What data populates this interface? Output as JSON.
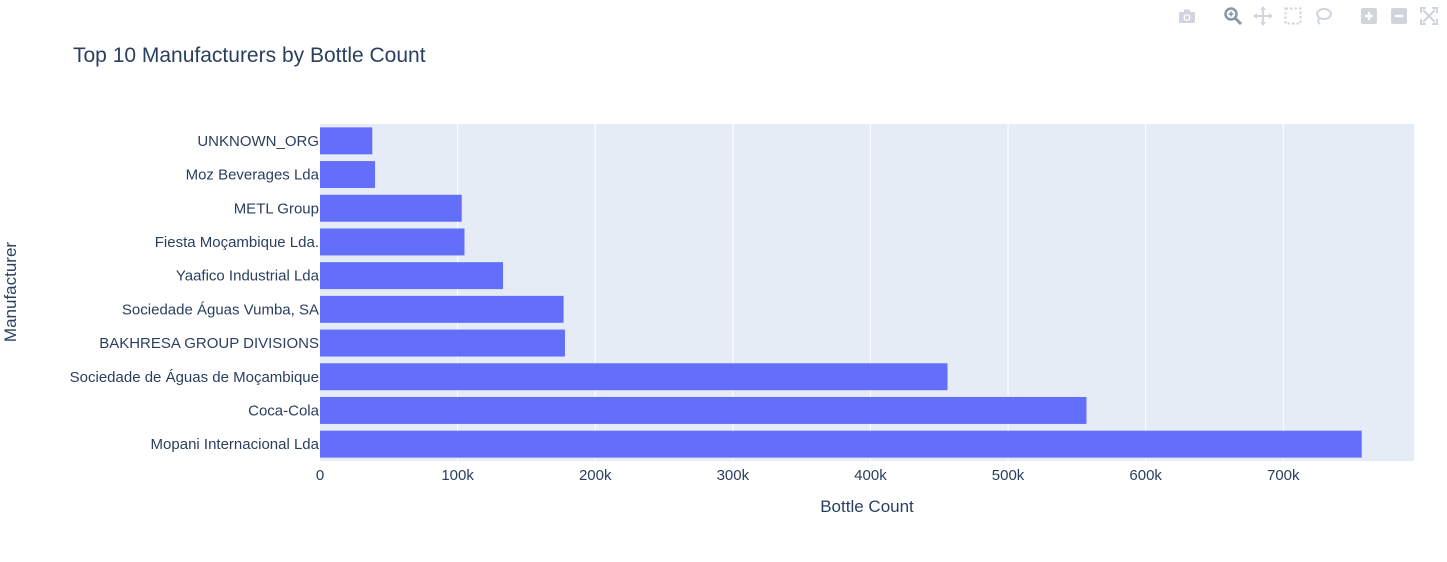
{
  "modebar": {
    "icons": [
      "camera-icon",
      "zoom-icon",
      "pan-icon",
      "box-select-icon",
      "lasso-select-icon",
      "zoom-in-icon",
      "zoom-out-icon",
      "autoscale-icon"
    ]
  },
  "colors": {
    "bar": "#636efa",
    "plot_bg": "#e5ecf6",
    "grid": "#ffffff",
    "text": "#2a3f5f",
    "modebar_icon": "#d0d5dd"
  },
  "chart_data": {
    "type": "bar",
    "orientation": "horizontal",
    "title": "Top 10 Manufacturers by Bottle Count",
    "xlabel": "Bottle Count",
    "ylabel": "Manufacturer",
    "xlim": [
      0,
      795000
    ],
    "grid": true,
    "x_ticks": [
      0,
      100000,
      200000,
      300000,
      400000,
      500000,
      600000,
      700000
    ],
    "x_tick_labels": [
      "0",
      "100k",
      "200k",
      "300k",
      "400k",
      "500k",
      "600k",
      "700k"
    ],
    "categories": [
      "UNKNOWN_ORG",
      "Moz Beverages Lda",
      "METL Group",
      "Fiesta Moçambique Lda.",
      "Yaafico Industrial Lda",
      "Sociedade Águas Vumba, SA",
      "BAKHRESA GROUP DIVISIONS",
      "Sociedade de Águas de Moçambique",
      "Coca-Cola",
      "Mopani Internacional Lda"
    ],
    "values": [
      38000,
      40000,
      103000,
      105000,
      133000,
      177000,
      178000,
      456000,
      557000,
      757000
    ]
  }
}
